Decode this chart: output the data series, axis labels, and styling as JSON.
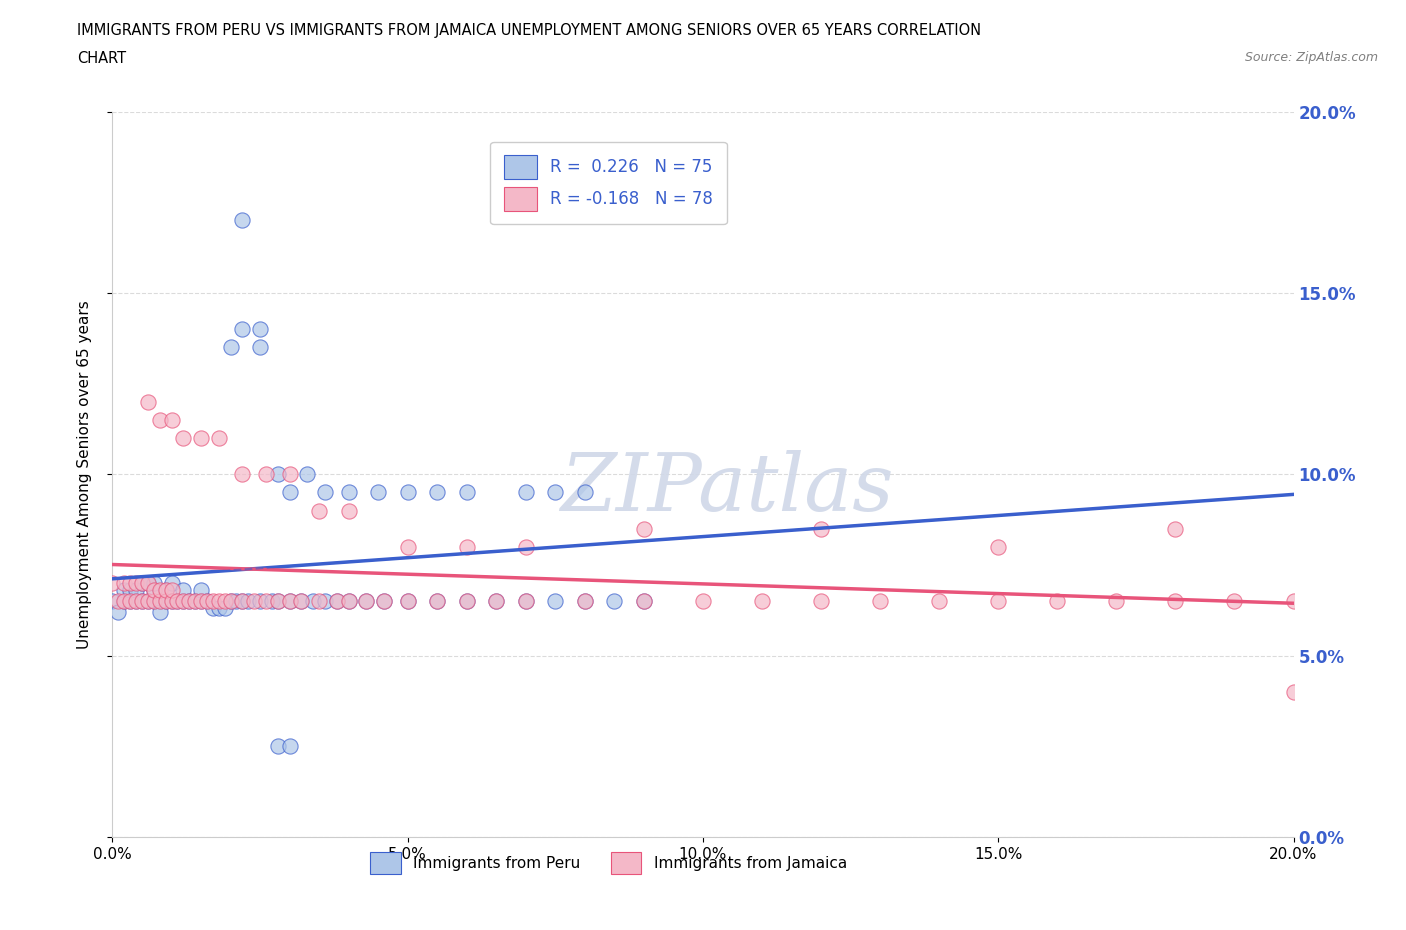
{
  "title_line1": "IMMIGRANTS FROM PERU VS IMMIGRANTS FROM JAMAICA UNEMPLOYMENT AMONG SENIORS OVER 65 YEARS CORRELATION",
  "title_line2": "CHART",
  "source": "Source: ZipAtlas.com",
  "ylabel": "Unemployment Among Seniors over 65 years",
  "R_peru": 0.226,
  "N_peru": 75,
  "R_jamaica": -0.168,
  "N_jamaica": 78,
  "color_peru": "#aec6e8",
  "color_jamaica": "#f4b8c8",
  "line_color_peru": "#3a5fcd",
  "line_color_jamaica": "#e8547a",
  "watermark_color": "#d0d8e8",
  "xlim": [
    0.0,
    0.2
  ],
  "ylim": [
    0.0,
    0.2
  ],
  "tick_vals": [
    0.0,
    0.05,
    0.1,
    0.15,
    0.2
  ],
  "tick_labels": [
    "0.0%",
    "5.0%",
    "10.0%",
    "15.0%",
    "20.0%"
  ],
  "peru_x": [
    0.0,
    0.001,
    0.002,
    0.002,
    0.003,
    0.003,
    0.004,
    0.004,
    0.005,
    0.005,
    0.006,
    0.006,
    0.007,
    0.007,
    0.007,
    0.008,
    0.008,
    0.009,
    0.009,
    0.01,
    0.01,
    0.011,
    0.012,
    0.012,
    0.013,
    0.014,
    0.015,
    0.015,
    0.016,
    0.017,
    0.018,
    0.019,
    0.02,
    0.021,
    0.022,
    0.023,
    0.025,
    0.027,
    0.028,
    0.03,
    0.032,
    0.034,
    0.036,
    0.038,
    0.04,
    0.043,
    0.046,
    0.05,
    0.055,
    0.06,
    0.065,
    0.07,
    0.075,
    0.08,
    0.085,
    0.09,
    0.02,
    0.022,
    0.025,
    0.028,
    0.03,
    0.033,
    0.036,
    0.04,
    0.045,
    0.05,
    0.055,
    0.06,
    0.07,
    0.075,
    0.08,
    0.022,
    0.025,
    0.028,
    0.03
  ],
  "peru_y": [
    0.065,
    0.062,
    0.065,
    0.068,
    0.065,
    0.068,
    0.065,
    0.068,
    0.065,
    0.07,
    0.065,
    0.07,
    0.065,
    0.068,
    0.07,
    0.065,
    0.062,
    0.065,
    0.068,
    0.065,
    0.07,
    0.065,
    0.065,
    0.068,
    0.065,
    0.065,
    0.065,
    0.068,
    0.065,
    0.063,
    0.063,
    0.063,
    0.065,
    0.065,
    0.065,
    0.065,
    0.065,
    0.065,
    0.065,
    0.065,
    0.065,
    0.065,
    0.065,
    0.065,
    0.065,
    0.065,
    0.065,
    0.065,
    0.065,
    0.065,
    0.065,
    0.065,
    0.065,
    0.065,
    0.065,
    0.065,
    0.135,
    0.14,
    0.14,
    0.1,
    0.095,
    0.1,
    0.095,
    0.095,
    0.095,
    0.095,
    0.095,
    0.095,
    0.095,
    0.095,
    0.095,
    0.17,
    0.135,
    0.025,
    0.025
  ],
  "jamaica_x": [
    0.0,
    0.001,
    0.002,
    0.002,
    0.003,
    0.003,
    0.004,
    0.004,
    0.005,
    0.005,
    0.006,
    0.006,
    0.007,
    0.007,
    0.008,
    0.008,
    0.009,
    0.009,
    0.01,
    0.01,
    0.011,
    0.012,
    0.013,
    0.014,
    0.015,
    0.016,
    0.017,
    0.018,
    0.019,
    0.02,
    0.022,
    0.024,
    0.026,
    0.028,
    0.03,
    0.032,
    0.035,
    0.038,
    0.04,
    0.043,
    0.046,
    0.05,
    0.055,
    0.06,
    0.065,
    0.07,
    0.08,
    0.09,
    0.1,
    0.11,
    0.12,
    0.13,
    0.14,
    0.15,
    0.16,
    0.17,
    0.18,
    0.19,
    0.2,
    0.006,
    0.008,
    0.01,
    0.012,
    0.015,
    0.018,
    0.022,
    0.026,
    0.03,
    0.035,
    0.04,
    0.05,
    0.06,
    0.07,
    0.09,
    0.12,
    0.15,
    0.18,
    0.2
  ],
  "jamaica_y": [
    0.07,
    0.065,
    0.065,
    0.07,
    0.065,
    0.07,
    0.065,
    0.07,
    0.065,
    0.07,
    0.065,
    0.07,
    0.065,
    0.068,
    0.065,
    0.068,
    0.065,
    0.068,
    0.065,
    0.068,
    0.065,
    0.065,
    0.065,
    0.065,
    0.065,
    0.065,
    0.065,
    0.065,
    0.065,
    0.065,
    0.065,
    0.065,
    0.065,
    0.065,
    0.065,
    0.065,
    0.065,
    0.065,
    0.065,
    0.065,
    0.065,
    0.065,
    0.065,
    0.065,
    0.065,
    0.065,
    0.065,
    0.065,
    0.065,
    0.065,
    0.065,
    0.065,
    0.065,
    0.065,
    0.065,
    0.065,
    0.065,
    0.065,
    0.065,
    0.12,
    0.115,
    0.115,
    0.11,
    0.11,
    0.11,
    0.1,
    0.1,
    0.1,
    0.09,
    0.09,
    0.08,
    0.08,
    0.08,
    0.085,
    0.085,
    0.08,
    0.085,
    0.04
  ]
}
